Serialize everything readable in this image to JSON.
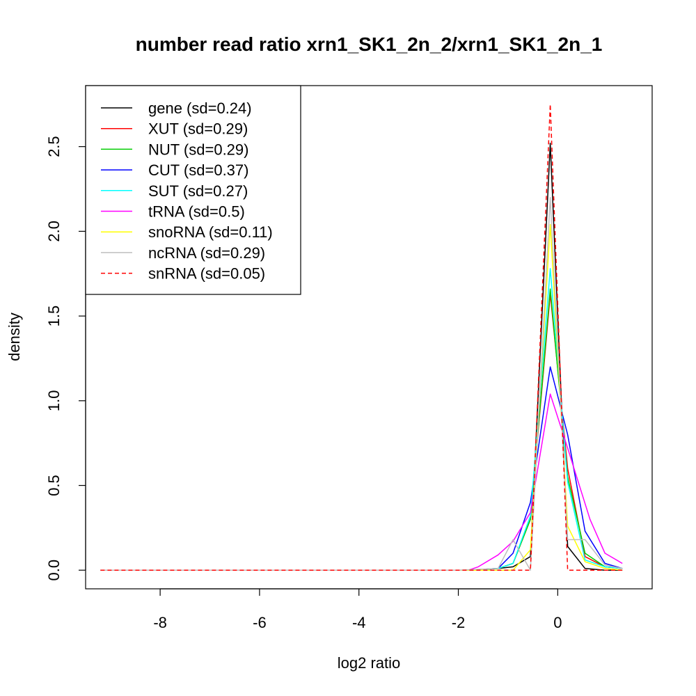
{
  "chart_data": {
    "type": "line",
    "title": "number read ratio xrn1_SK1_2n_2/xrn1_SK1_2n_1",
    "xlabel": "log2 ratio",
    "ylabel": "density",
    "xlim": [
      -9.5,
      1.9
    ],
    "ylim": [
      -0.11,
      2.86
    ],
    "x_ticks": [
      -8,
      -6,
      -4,
      -2,
      0
    ],
    "y_ticks": [
      0.0,
      0.5,
      1.0,
      1.5,
      2.0,
      2.5
    ],
    "x_tick_labels": [
      "-8",
      "-6",
      "-4",
      "-2",
      "0"
    ],
    "y_tick_labels": [
      "0.0",
      "0.5",
      "1.0",
      "1.5",
      "2.0",
      "2.5"
    ],
    "grid": false,
    "legend_position": "top-left",
    "series": [
      {
        "name": "gene (sd=0.24)",
        "color": "#000000",
        "dash": "solid",
        "x": [
          -9.2,
          -2.0,
          -1.8,
          -1.2,
          -0.9,
          -0.55,
          -0.15,
          0.2,
          0.55,
          0.95,
          1.3
        ],
        "y": [
          0,
          0,
          0,
          0.01,
          0.02,
          0.08,
          2.52,
          0.14,
          0.01,
          0.0,
          0.0
        ]
      },
      {
        "name": "XUT (sd=0.29)",
        "color": "#ff0000",
        "dash": "solid",
        "x": [
          -9.2,
          -2.0,
          -1.8,
          -1.2,
          -0.9,
          -0.55,
          -0.15,
          0.2,
          0.55,
          0.95,
          1.3
        ],
        "y": [
          0,
          0,
          0,
          0.01,
          0.04,
          0.3,
          1.63,
          0.6,
          0.08,
          0.02,
          0.01
        ]
      },
      {
        "name": "NUT (sd=0.29)",
        "color": "#00cd00",
        "dash": "solid",
        "x": [
          -9.2,
          -2.0,
          -1.8,
          -1.2,
          -0.9,
          -0.55,
          -0.15,
          0.2,
          0.55,
          0.95,
          1.3
        ],
        "y": [
          0,
          0,
          0,
          0.01,
          0.04,
          0.3,
          1.66,
          0.55,
          0.1,
          0.02,
          0.01
        ]
      },
      {
        "name": "CUT (sd=0.37)",
        "color": "#0000ff",
        "dash": "solid",
        "x": [
          -9.2,
          -2.0,
          -1.8,
          -1.2,
          -0.9,
          -0.55,
          -0.15,
          0.2,
          0.55,
          0.95,
          1.3
        ],
        "y": [
          0,
          0,
          0,
          0.01,
          0.1,
          0.4,
          1.2,
          0.8,
          0.23,
          0.04,
          0.01
        ]
      },
      {
        "name": "SUT (sd=0.27)",
        "color": "#00ffff",
        "dash": "solid",
        "x": [
          -9.2,
          -2.0,
          -1.8,
          -1.2,
          -0.9,
          -0.55,
          -0.15,
          0.2,
          0.55,
          0.95,
          1.3
        ],
        "y": [
          0,
          0,
          0,
          0.01,
          0.04,
          0.32,
          1.78,
          0.52,
          0.06,
          0.02,
          0.01
        ]
      },
      {
        "name": "tRNA (sd=0.5)",
        "color": "#ff00ff",
        "dash": "solid",
        "x": [
          -9.2,
          -2.0,
          -1.8,
          -1.6,
          -1.2,
          -0.9,
          -0.55,
          -0.15,
          0.2,
          0.65,
          0.95,
          1.3
        ],
        "y": [
          0,
          0,
          0.0,
          0.02,
          0.09,
          0.17,
          0.34,
          1.04,
          0.72,
          0.3,
          0.1,
          0.04
        ]
      },
      {
        "name": "snoRNA (sd=0.11)",
        "color": "#ffff00",
        "dash": "solid",
        "x": [
          -9.2,
          -2.0,
          -1.2,
          -0.9,
          -0.55,
          -0.15,
          0.2,
          0.55,
          0.95,
          1.3
        ],
        "y": [
          0,
          0,
          0,
          0.0,
          0.12,
          2.04,
          0.26,
          0.05,
          0.01,
          0.0
        ]
      },
      {
        "name": "ncRNA (sd=0.29)",
        "color": "#bebebe",
        "dash": "solid",
        "x": [
          -9.2,
          -2.0,
          -1.2,
          -0.9,
          -0.55,
          -0.15,
          0.2,
          0.55,
          0.95,
          1.3
        ],
        "y": [
          0,
          0,
          0.01,
          0.18,
          0.0,
          2.2,
          0.18,
          0.18,
          0.03,
          0.01
        ]
      },
      {
        "name": "snRNA (sd=0.05)",
        "color": "#ff0000",
        "dash": "dashed",
        "x": [
          -9.2,
          -2.0,
          -1.2,
          -0.55,
          -0.15,
          0.2,
          0.55,
          0.95,
          1.3
        ],
        "y": [
          0,
          0,
          0,
          0,
          2.75,
          0,
          0,
          0,
          0
        ]
      }
    ]
  }
}
